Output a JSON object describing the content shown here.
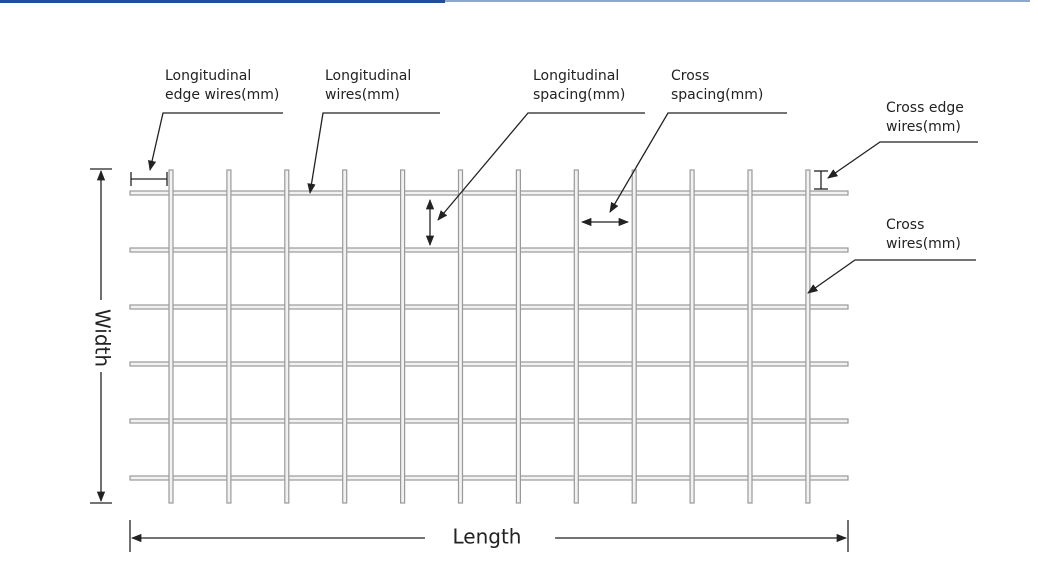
{
  "labels": {
    "longitudinal_edge_wires": [
      "Longitudinal",
      "edge wires(mm)"
    ],
    "longitudinal_wires": [
      "Longitudinal",
      "wires(mm)"
    ],
    "longitudinal_spacing": [
      "Longitudinal",
      "spacing(mm)"
    ],
    "cross_spacing": [
      "Cross",
      "spacing(mm)"
    ],
    "cross_edge_wires": [
      "Cross edge",
      "wires(mm)"
    ],
    "cross_wires": [
      "Cross",
      "wires(mm)"
    ],
    "width": "Width",
    "length": "Length"
  }
}
